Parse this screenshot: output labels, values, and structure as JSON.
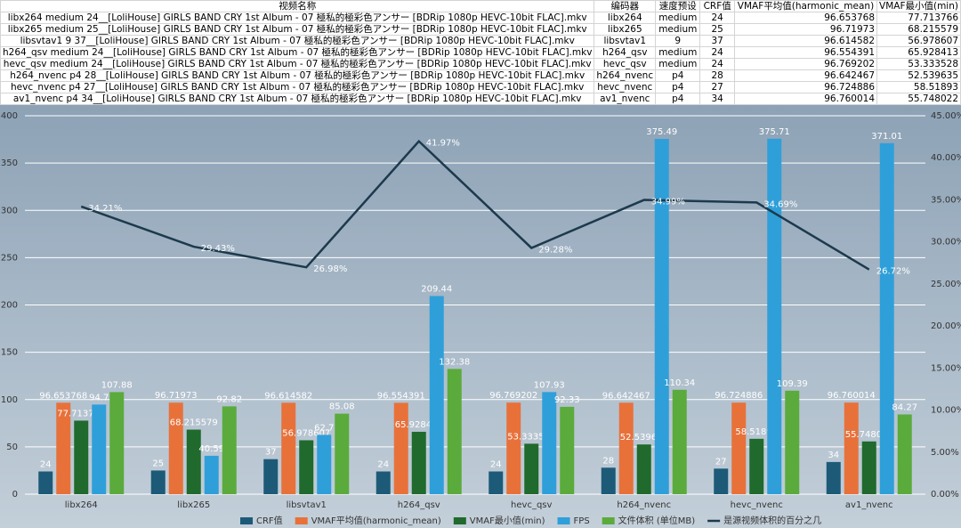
{
  "table": {
    "header": [
      "视频名称",
      "编码器",
      "速度预设",
      "CRF值",
      "VMAF平均值(harmonic_mean)",
      "VMAF最小值(min)"
    ],
    "rows": [
      [
        "libx264 medium 24__[LoliHouse] GIRLS BAND CRY 1st Album - 07 極私的極彩色アンサー [BDRip 1080p HEVC-10bit FLAC].mkv",
        "libx264",
        "medium",
        24,
        96.653768,
        77.713766
      ],
      [
        "libx265 medium 25__[LoliHouse] GIRLS BAND CRY 1st Album - 07 極私的極彩色アンサー [BDRip 1080p HEVC-10bit FLAC].mkv",
        "libx265",
        "medium",
        25,
        96.71973,
        68.215579
      ],
      [
        "libsvtav1 9 37__[LoliHouse] GIRLS BAND CRY 1st Album - 07 極私的極彩色アンサー [BDRip 1080p HEVC-10bit FLAC].mkv",
        "libsvtav1",
        9,
        37,
        96.614582,
        56.978607
      ],
      [
        "h264_qsv medium 24__[LoliHouse] GIRLS BAND CRY 1st Album - 07 極私的極彩色アンサー [BDRip 1080p HEVC-10bit FLAC].mkv",
        "h264_qsv",
        "medium",
        24,
        96.554391,
        65.928413
      ],
      [
        "hevc_qsv medium 24__[LoliHouse] GIRLS BAND CRY 1st Album - 07 極私的極彩色アンサー [BDRip 1080p HEVC-10bit FLAC].mkv",
        "hevc_qsv",
        "medium",
        24,
        96.769202,
        53.333528
      ],
      [
        "h264_nvenc p4 28__[LoliHouse] GIRLS BAND CRY 1st Album - 07 極私的極彩色アンサー [BDRip 1080p HEVC-10bit FLAC].mkv",
        "h264_nvenc",
        "p4",
        28,
        96.642467,
        52.539635
      ],
      [
        "hevc_nvenc p4 27__[LoliHouse] GIRLS BAND CRY 1st Album - 07 極私的極彩色アンサー [BDRip 1080p HEVC-10bit FLAC].mkv",
        "hevc_nvenc",
        "p4",
        27,
        96.724886,
        58.51893
      ],
      [
        "av1_nvenc p4 34__[LoliHouse] GIRLS BAND CRY 1st Album - 07 極私的極彩色アンサー [BDRip 1080p HEVC-10bit FLAC].mkv",
        "av1_nvenc",
        "p4",
        34,
        96.760014,
        55.748022
      ]
    ]
  },
  "chart_data": {
    "type": "bar",
    "grid": true,
    "legend": "bottom",
    "categories": [
      "libx264",
      "libx265",
      "libsvtav1",
      "h264_qsv",
      "hevc_qsv",
      "h264_nvenc",
      "hevc_nvenc",
      "av1_nvenc"
    ],
    "ylim": [
      0,
      400
    ],
    "yticks": [
      0,
      50,
      100,
      150,
      200,
      250,
      300,
      350,
      400
    ],
    "y2lim": [
      0,
      45
    ],
    "y2ticks": [
      {
        "value": 0,
        "label": "0.00%"
      },
      {
        "value": 5,
        "label": "5.00%"
      },
      {
        "value": 10,
        "label": "10.00%"
      },
      {
        "value": 15,
        "label": "15.00%"
      },
      {
        "value": 20,
        "label": "20.00%"
      },
      {
        "value": 25,
        "label": "25.00%"
      },
      {
        "value": 30,
        "label": "30.00%"
      },
      {
        "value": 35,
        "label": "35.00%"
      },
      {
        "value": 40,
        "label": "40.00%"
      },
      {
        "value": 45,
        "label": "45.00%"
      }
    ],
    "series": [
      {
        "name": "CRF值",
        "color": "#1d5a78",
        "values": [
          24,
          25,
          37,
          24,
          24,
          28,
          27,
          34
        ]
      },
      {
        "name": "VMAF平均值(harmonic_mean)",
        "color": "#e8713a",
        "values": [
          96.653768,
          96.71973,
          96.614582,
          96.554391,
          96.769202,
          96.642467,
          96.724886,
          96.760014
        ]
      },
      {
        "name": "VMAF最小值(min)",
        "color": "#1f6a2c",
        "values": [
          77.713766,
          68.215579,
          56.978607,
          65.928413,
          53.333528,
          52.539635,
          58.51893,
          55.748022
        ]
      },
      {
        "name": "FPS",
        "color": "#2f9fd9",
        "values": [
          94.7,
          40.59,
          62.7,
          209.44,
          107.93,
          375.49,
          375.71,
          371.01
        ]
      },
      {
        "name": "文件体积 (单位MB)",
        "color": "#5aab3b",
        "values": [
          107.88,
          92.82,
          85.08,
          132.38,
          92.33,
          110.34,
          109.39,
          84.27
        ]
      },
      {
        "name": "是源视频体积的百分之几",
        "color": "#1c3a4c",
        "type": "line",
        "axis": "y2",
        "values": [
          34.21,
          29.43,
          26.98,
          41.97,
          29.28,
          34.99,
          34.69,
          26.72
        ],
        "value_labels": [
          "34.21%",
          "29.43%",
          "26.98%",
          "41.97%",
          "29.28%",
          "34.99%",
          "34.69%",
          "26.72%"
        ]
      }
    ]
  }
}
